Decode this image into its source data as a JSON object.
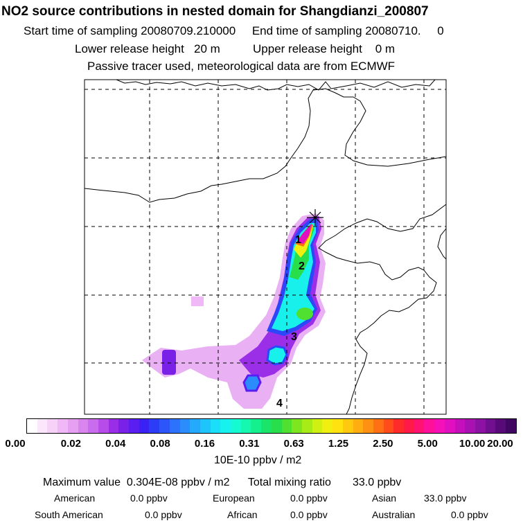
{
  "header": {
    "title": "NO2 source contributions in nested domain for Shangdianzi_200807",
    "line1": "Start time of sampling 20080709.210000     End time of sampling 20080710.     0",
    "line2": "Lower release height   20 m          Upper release height    0 m",
    "line3": "Passive tracer used, meteorological data are from ECMWF"
  },
  "map": {
    "site_marker": "star-cross-icon",
    "annotations": [
      "1",
      "2",
      "3",
      "4"
    ]
  },
  "colorbar": {
    "ticks": [
      "0.00",
      "0.02",
      "0.04",
      "0.08",
      "0.16",
      "0.31",
      "0.63",
      "1.25",
      "2.50",
      "5.00",
      "10.00",
      "20.00"
    ],
    "units": "10E-10 ppbv / m2",
    "colors": [
      "#ffffff",
      "#fbe7fb",
      "#f6d1f8",
      "#f0b8f6",
      "#e6a0f2",
      "#da85ef",
      "#c96ced",
      "#b84ce9",
      "#9a2ee8",
      "#7a21e8",
      "#5a1ef0",
      "#3a22f4",
      "#2c3df8",
      "#2d56fa",
      "#2c72fb",
      "#2b8cfb",
      "#23aafb",
      "#1ec5fb",
      "#1bdef9",
      "#18f2ee",
      "#16fad2",
      "#15f8b0",
      "#15f08e",
      "#1ae46a",
      "#28de4a",
      "#50e02f",
      "#7de61f",
      "#a8ec17",
      "#d0f012",
      "#f0ef10",
      "#ffe20f",
      "#ffc90f",
      "#ffae10",
      "#ff9112",
      "#ff7014",
      "#ff4c1a",
      "#ff2a2a",
      "#ff1a4a",
      "#ff1270",
      "#ff109a",
      "#f510b8",
      "#e00fc0",
      "#c30fbc",
      "#a811b2",
      "#8c12a4",
      "#700f90",
      "#580a78",
      "#400762"
    ]
  },
  "summary": {
    "max_line": "Maximum value  0.304E-08 ppbv / m2      Total mixing ratio       33.0 ppbv",
    "row1": [
      {
        "label": "American",
        "value": "0.0 ppbv"
      },
      {
        "label": "European",
        "value": "0.0 ppbv"
      },
      {
        "label": "Asian",
        "value": "33.0 ppbv"
      }
    ],
    "row2": [
      {
        "label": "South American",
        "value": "0.0 ppbv"
      },
      {
        "label": "African",
        "value": "0.0 ppbv"
      },
      {
        "label": "Australian",
        "value": "0.0 ppbv"
      }
    ]
  }
}
